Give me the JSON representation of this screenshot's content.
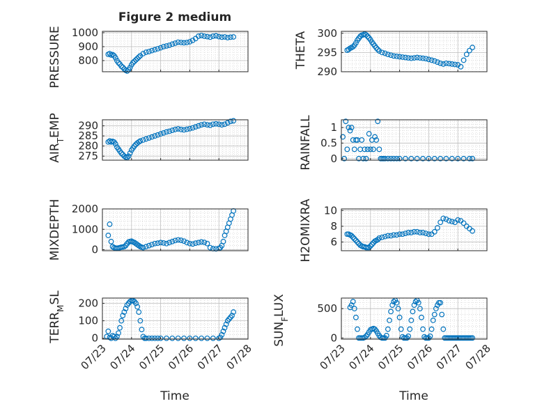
{
  "figure": {
    "title": "Figure 2 medium"
  },
  "colors": {
    "marker": "#0072BD",
    "axis": "#262626",
    "grid": "#c8c8c8",
    "background": "#ffffff"
  },
  "chart_data": [
    {
      "type": "scatter",
      "ylabel": "PRESSURE",
      "ylim": [
        720,
        1010
      ],
      "yticks": [
        800,
        900,
        1000
      ],
      "xlim": [
        "07/23",
        "07/28"
      ],
      "xticks": [
        "07/23",
        "07/24",
        "07/25",
        "07/26",
        "07/27",
        "07/28"
      ],
      "grid": true,
      "minor_grid": true,
      "x": [
        0.2,
        0.25,
        0.3,
        0.35,
        0.4,
        0.45,
        0.5,
        0.55,
        0.6,
        0.65,
        0.7,
        0.75,
        0.8,
        0.85,
        0.9,
        0.95,
        1.0,
        1.05,
        1.1,
        1.15,
        1.2,
        1.25,
        1.3,
        1.4,
        1.5,
        1.6,
        1.7,
        1.8,
        1.9,
        2.0,
        2.1,
        2.2,
        2.3,
        2.4,
        2.5,
        2.6,
        2.7,
        2.8,
        2.9,
        3.0,
        3.1,
        3.2,
        3.3,
        3.4,
        3.5,
        3.6,
        3.7,
        3.8,
        3.9,
        4.0,
        4.1,
        4.2,
        4.3,
        4.4,
        4.5
      ],
      "y": [
        845,
        850,
        840,
        843,
        835,
        820,
        800,
        785,
        775,
        760,
        752,
        740,
        730,
        725,
        735,
        750,
        770,
        785,
        795,
        805,
        815,
        825,
        835,
        850,
        860,
        865,
        872,
        878,
        885,
        892,
        900,
        905,
        910,
        918,
        925,
        932,
        930,
        928,
        930,
        935,
        945,
        958,
        975,
        980,
        975,
        972,
        968,
        975,
        978,
        972,
        968,
        970,
        965,
        968,
        970
      ]
    },
    {
      "type": "scatter",
      "ylabel": "THETA",
      "ylim": [
        290,
        300.5
      ],
      "yticks": [
        290,
        295,
        300
      ],
      "xlim": [
        "07/23",
        "07/28"
      ],
      "xticks": [
        "07/23",
        "07/24",
        "07/25",
        "07/26",
        "07/27",
        "07/28"
      ],
      "grid": true,
      "minor_grid": true,
      "x": [
        0.2,
        0.25,
        0.3,
        0.35,
        0.4,
        0.45,
        0.5,
        0.55,
        0.6,
        0.65,
        0.7,
        0.75,
        0.8,
        0.85,
        0.9,
        0.95,
        1.0,
        1.05,
        1.1,
        1.15,
        1.2,
        1.25,
        1.3,
        1.4,
        1.5,
        1.6,
        1.7,
        1.8,
        1.9,
        2.0,
        2.1,
        2.2,
        2.3,
        2.4,
        2.5,
        2.6,
        2.7,
        2.8,
        2.9,
        3.0,
        3.1,
        3.2,
        3.3,
        3.4,
        3.5,
        3.6,
        3.7,
        3.8,
        3.9,
        4.0,
        4.1,
        4.2,
        4.3,
        4.4,
        4.5
      ],
      "y": [
        295.6,
        295.8,
        296.1,
        296.3,
        296.5,
        296.9,
        297.5,
        298.2,
        298.7,
        299.2,
        299.5,
        299.6,
        299.8,
        299.6,
        299.2,
        298.8,
        298.3,
        297.7,
        297.2,
        296.7,
        296.2,
        295.8,
        295.4,
        295.0,
        294.8,
        294.5,
        294.3,
        294.1,
        294.0,
        293.9,
        293.8,
        293.7,
        293.6,
        293.5,
        293.6,
        293.7,
        293.6,
        293.5,
        293.4,
        293.2,
        293.0,
        292.8,
        292.5,
        292.2,
        292.0,
        292.2,
        292.1,
        292.0,
        291.9,
        291.8,
        291.3,
        293.0,
        294.5,
        295.5,
        296.3
      ]
    },
    {
      "type": "scatter",
      "ylabel": "AIR_TEMP",
      "ylim": [
        273,
        293
      ],
      "yticks": [
        275,
        280,
        285,
        290
      ],
      "xlim": [
        "07/23",
        "07/28"
      ],
      "xticks": [
        "07/23",
        "07/24",
        "07/25",
        "07/26",
        "07/27",
        "07/28"
      ],
      "grid": true,
      "minor_grid": true,
      "x": [
        0.2,
        0.25,
        0.3,
        0.35,
        0.4,
        0.45,
        0.5,
        0.55,
        0.6,
        0.65,
        0.7,
        0.75,
        0.8,
        0.85,
        0.9,
        0.95,
        1.0,
        1.05,
        1.1,
        1.15,
        1.2,
        1.25,
        1.3,
        1.4,
        1.5,
        1.6,
        1.7,
        1.8,
        1.9,
        2.0,
        2.1,
        2.2,
        2.3,
        2.4,
        2.5,
        2.6,
        2.7,
        2.8,
        2.9,
        3.0,
        3.1,
        3.2,
        3.3,
        3.4,
        3.5,
        3.6,
        3.7,
        3.8,
        3.9,
        4.0,
        4.1,
        4.2,
        4.3,
        4.4,
        4.5
      ],
      "y": [
        282,
        282.5,
        282,
        282.3,
        282,
        281,
        279.5,
        278.5,
        277.5,
        276.5,
        275.8,
        275,
        274.5,
        274.3,
        275,
        276.5,
        278,
        279,
        280,
        280.8,
        281.5,
        282,
        282.5,
        283,
        283.5,
        284,
        284.5,
        285,
        285.5,
        286,
        286.5,
        287,
        287.3,
        287.8,
        288.2,
        288.5,
        288.2,
        288,
        288.3,
        288.6,
        289,
        289.5,
        290,
        290.5,
        290.8,
        290.5,
        290.3,
        290.8,
        291,
        290.8,
        290.5,
        290.8,
        291.5,
        292.2,
        292.5
      ]
    },
    {
      "type": "scatter",
      "ylabel": "RAINFALL",
      "ylim": [
        -0.05,
        1.25
      ],
      "yticks": [
        0,
        0.5,
        1
      ],
      "xlim": [
        "07/23",
        "07/28"
      ],
      "xticks": [
        "07/23",
        "07/24",
        "07/25",
        "07/26",
        "07/27",
        "07/28"
      ],
      "grid": true,
      "minor_grid": true,
      "x": [
        0.05,
        0.1,
        0.15,
        0.2,
        0.25,
        0.3,
        0.35,
        0.4,
        0.45,
        0.5,
        0.55,
        0.6,
        0.65,
        0.7,
        0.75,
        0.8,
        0.85,
        0.9,
        0.95,
        1.0,
        1.05,
        1.1,
        1.15,
        1.2,
        1.25,
        1.3,
        1.35,
        1.4,
        1.45,
        1.5,
        1.6,
        1.7,
        1.8,
        1.9,
        2.0,
        2.2,
        2.4,
        2.6,
        2.8,
        3.0,
        3.2,
        3.4,
        3.6,
        3.8,
        4.0,
        4.2,
        4.4,
        4.5
      ],
      "y": [
        0.7,
        0,
        1.2,
        0.3,
        1.0,
        0.9,
        1.0,
        0.6,
        0.3,
        0.6,
        0.6,
        0,
        0.3,
        0.6,
        0,
        0.3,
        0,
        0.3,
        0.8,
        0.3,
        0.6,
        0.3,
        0.7,
        0.6,
        1.2,
        0.3,
        0,
        0,
        0,
        0,
        0,
        0,
        0,
        0,
        0,
        0,
        0,
        0,
        0,
        0,
        0,
        0,
        0,
        0,
        0,
        0,
        0,
        0
      ]
    },
    {
      "type": "scatter",
      "ylabel": "MIXDEPTH",
      "ylim": [
        -50,
        2000
      ],
      "yticks": [
        0,
        1000,
        2000
      ],
      "xlim": [
        "07/23",
        "07/28"
      ],
      "xticks": [
        "07/23",
        "07/24",
        "07/25",
        "07/26",
        "07/27",
        "07/28"
      ],
      "grid": true,
      "minor_grid": true,
      "x": [
        0.2,
        0.25,
        0.3,
        0.35,
        0.4,
        0.45,
        0.5,
        0.55,
        0.6,
        0.65,
        0.7,
        0.75,
        0.8,
        0.85,
        0.9,
        0.95,
        1.0,
        1.05,
        1.1,
        1.15,
        1.2,
        1.25,
        1.3,
        1.35,
        1.4,
        1.5,
        1.6,
        1.7,
        1.8,
        1.9,
        2.0,
        2.1,
        2.2,
        2.3,
        2.4,
        2.5,
        2.6,
        2.7,
        2.8,
        2.9,
        3.0,
        3.1,
        3.2,
        3.3,
        3.4,
        3.5,
        3.6,
        3.7,
        3.8,
        3.9,
        4.0,
        4.05,
        4.1,
        4.15,
        4.2,
        4.25,
        4.3,
        4.35,
        4.4,
        4.45,
        4.5
      ],
      "y": [
        700,
        1250,
        400,
        150,
        100,
        80,
        60,
        80,
        100,
        120,
        130,
        150,
        200,
        300,
        380,
        400,
        420,
        380,
        350,
        300,
        250,
        200,
        150,
        120,
        100,
        150,
        200,
        250,
        300,
        320,
        350,
        330,
        300,
        350,
        400,
        450,
        480,
        460,
        420,
        350,
        300,
        280,
        320,
        350,
        380,
        360,
        300,
        100,
        50,
        40,
        60,
        100,
        200,
        400,
        700,
        900,
        1100,
        1300,
        1500,
        1700,
        1900
      ]
    },
    {
      "type": "scatter",
      "ylabel": "H2OMIXRA",
      "ylim": [
        4.9,
        10.2
      ],
      "yticks": [
        6,
        8,
        10
      ],
      "xlim": [
        "07/23",
        "07/28"
      ],
      "xticks": [
        "07/23",
        "07/24",
        "07/25",
        "07/26",
        "07/27",
        "07/28"
      ],
      "grid": true,
      "minor_grid": true,
      "x": [
        0.2,
        0.25,
        0.3,
        0.35,
        0.4,
        0.45,
        0.5,
        0.55,
        0.6,
        0.65,
        0.7,
        0.75,
        0.8,
        0.85,
        0.9,
        0.95,
        1.0,
        1.05,
        1.1,
        1.15,
        1.2,
        1.25,
        1.3,
        1.4,
        1.5,
        1.6,
        1.7,
        1.8,
        1.9,
        2.0,
        2.1,
        2.2,
        2.3,
        2.4,
        2.5,
        2.6,
        2.7,
        2.8,
        2.9,
        3.0,
        3.1,
        3.2,
        3.3,
        3.4,
        3.5,
        3.6,
        3.7,
        3.8,
        3.9,
        4.0,
        4.1,
        4.2,
        4.3,
        4.4,
        4.5
      ],
      "y": [
        7.0,
        7.0,
        6.9,
        6.8,
        6.6,
        6.4,
        6.2,
        6.0,
        5.8,
        5.6,
        5.5,
        5.4,
        5.4,
        5.3,
        5.3,
        5.3,
        5.5,
        5.7,
        5.9,
        6.1,
        6.2,
        6.3,
        6.5,
        6.6,
        6.7,
        6.8,
        6.8,
        6.9,
        6.9,
        7.0,
        7.0,
        7.1,
        7.2,
        7.2,
        7.3,
        7.3,
        7.2,
        7.2,
        7.1,
        7.0,
        7.0,
        7.3,
        7.8,
        8.5,
        9.0,
        8.9,
        8.7,
        8.6,
        8.5,
        8.8,
        8.7,
        8.4,
        8.0,
        7.7,
        7.4
      ]
    },
    {
      "type": "scatter",
      "ylabel": "TERR_MSL",
      "ylim": [
        -5,
        230
      ],
      "yticks": [
        0,
        100,
        200
      ],
      "xlim": [
        "07/23",
        "07/28"
      ],
      "xticks": [
        "07/23",
        "07/24",
        "07/25",
        "07/26",
        "07/27",
        "07/28"
      ],
      "grid": true,
      "minor_grid": true,
      "x": [
        0.15,
        0.2,
        0.25,
        0.3,
        0.35,
        0.4,
        0.45,
        0.5,
        0.55,
        0.6,
        0.65,
        0.7,
        0.75,
        0.8,
        0.85,
        0.9,
        0.95,
        1.0,
        1.05,
        1.1,
        1.15,
        1.2,
        1.25,
        1.3,
        1.35,
        1.4,
        1.45,
        1.5,
        1.6,
        1.7,
        1.8,
        1.9,
        2.0,
        2.2,
        2.4,
        2.6,
        2.8,
        3.0,
        3.2,
        3.4,
        3.6,
        3.8,
        4.0,
        4.05,
        4.1,
        4.15,
        4.2,
        4.25,
        4.3,
        4.35,
        4.4,
        4.45,
        4.5
      ],
      "y": [
        10,
        40,
        5,
        0,
        15,
        10,
        0,
        10,
        30,
        60,
        100,
        130,
        150,
        170,
        190,
        200,
        210,
        215,
        215,
        210,
        200,
        180,
        150,
        100,
        50,
        10,
        0,
        0,
        0,
        0,
        0,
        0,
        0,
        0,
        0,
        0,
        0,
        0,
        0,
        0,
        0,
        0,
        0,
        5,
        20,
        40,
        60,
        80,
        100,
        110,
        120,
        130,
        150
      ]
    },
    {
      "type": "scatter",
      "ylabel": "SUN_FLUX",
      "ylim": [
        -20,
        680
      ],
      "yticks": [
        0,
        500
      ],
      "xlim": [
        "07/23",
        "07/28"
      ],
      "xticks": [
        "07/23",
        "07/24",
        "07/25",
        "07/26",
        "07/27",
        "07/28"
      ],
      "grid": true,
      "minor_grid": true,
      "x": [
        0.3,
        0.35,
        0.4,
        0.45,
        0.5,
        0.55,
        0.6,
        0.65,
        0.7,
        0.75,
        0.8,
        0.85,
        0.9,
        0.95,
        1.0,
        1.05,
        1.1,
        1.15,
        1.2,
        1.25,
        1.3,
        1.35,
        1.4,
        1.45,
        1.5,
        1.55,
        1.6,
        1.65,
        1.7,
        1.75,
        1.8,
        1.85,
        1.9,
        1.95,
        2.0,
        2.05,
        2.1,
        2.15,
        2.2,
        2.25,
        2.3,
        2.35,
        2.4,
        2.45,
        2.5,
        2.55,
        2.6,
        2.65,
        2.7,
        2.75,
        2.8,
        2.85,
        2.9,
        2.95,
        3.0,
        3.05,
        3.1,
        3.15,
        3.2,
        3.25,
        3.3,
        3.35,
        3.4,
        3.45,
        3.5,
        3.55,
        3.6,
        3.65,
        3.7,
        3.75,
        3.8,
        3.85,
        3.9,
        3.95,
        4.0,
        4.05,
        4.1,
        4.15,
        4.2,
        4.25,
        4.3,
        4.35,
        4.4,
        4.45,
        4.5
      ],
      "y": [
        520,
        560,
        620,
        500,
        350,
        150,
        0,
        0,
        0,
        0,
        10,
        30,
        60,
        100,
        140,
        150,
        160,
        150,
        120,
        80,
        40,
        10,
        0,
        0,
        0,
        40,
        150,
        300,
        450,
        560,
        620,
        640,
        600,
        500,
        350,
        150,
        20,
        0,
        0,
        0,
        30,
        150,
        300,
        450,
        560,
        620,
        640,
        600,
        500,
        350,
        150,
        20,
        0,
        0,
        0,
        30,
        150,
        300,
        400,
        500,
        560,
        600,
        600,
        400,
        150,
        0,
        0,
        0,
        0,
        0,
        0,
        0,
        0,
        0,
        0,
        0,
        0,
        0,
        0,
        0,
        0,
        0,
        0,
        0,
        0
      ]
    }
  ],
  "xlabels": [
    "Time",
    "Time"
  ]
}
